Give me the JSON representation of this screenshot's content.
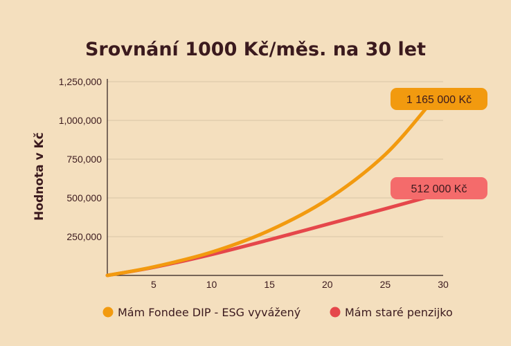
{
  "chart_data": {
    "type": "line",
    "title": "Srovnání 1000 Kč/měs. na 30 let",
    "ylabel": "Hodnota v Kč",
    "xlabel": "",
    "x": [
      1,
      5,
      10,
      15,
      20,
      25,
      29
    ],
    "xlim": [
      1,
      30
    ],
    "ylim": [
      0,
      1250000
    ],
    "x_ticks": [
      5,
      10,
      15,
      20,
      25,
      30
    ],
    "y_ticks": [
      250000,
      500000,
      750000,
      1000000,
      1250000
    ],
    "y_tick_labels": [
      "250,000",
      "500,000",
      "750,000",
      "1,000,000",
      "1,250,000"
    ],
    "grid": "horizontal",
    "legend_placement": "bottom",
    "series": [
      {
        "name": "Mám Fondee DIP - ESG vyvážený",
        "color": "#f29a0f",
        "values": [
          0,
          55000,
          150000,
          290000,
          490000,
          780000,
          1120000
        ],
        "callout": "1 165 000 Kč",
        "callout_color": "#f29a0f"
      },
      {
        "name": "Mám staré penzijko",
        "color": "#e5474b",
        "values": [
          0,
          52000,
          135000,
          230000,
          330000,
          430000,
          512000
        ],
        "callout": "512 000 Kč",
        "callout_color": "#f46b6b"
      }
    ]
  }
}
